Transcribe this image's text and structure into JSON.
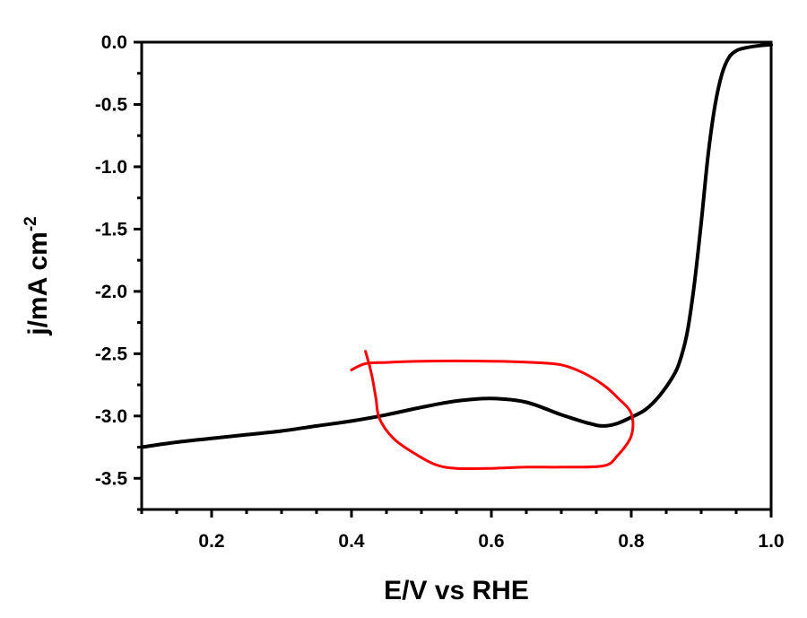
{
  "chart_data": {
    "type": "line",
    "xlabel": "E/V vs RHE",
    "ylabel": {
      "text": "j/mA cm",
      "superscript": "-2"
    },
    "xlim": [
      0.1,
      1.0
    ],
    "ylim": [
      -3.75,
      0.0
    ],
    "x_ticks": [
      {
        "value": 0.2,
        "label": "0.2"
      },
      {
        "value": 0.4,
        "label": "0.4"
      },
      {
        "value": 0.6,
        "label": "0.6"
      },
      {
        "value": 0.8,
        "label": "0.8"
      },
      {
        "value": 1.0,
        "label": "1.0"
      }
    ],
    "y_ticks": [
      {
        "value": 0.0,
        "label": "0.0"
      },
      {
        "value": -0.5,
        "label": "-0.5"
      },
      {
        "value": -1.0,
        "label": "-1.0"
      },
      {
        "value": -1.5,
        "label": "-1.5"
      },
      {
        "value": -2.0,
        "label": "-2.0"
      },
      {
        "value": -2.5,
        "label": "-2.5"
      },
      {
        "value": -3.0,
        "label": "-3.0"
      },
      {
        "value": -3.5,
        "label": "-3.5"
      }
    ],
    "x_minor_step": 0.05,
    "y_minor_step": 0.25,
    "grid": false,
    "legend": "none",
    "series": [
      {
        "color": "#000000",
        "x": [
          0.1,
          0.15,
          0.2,
          0.25,
          0.3,
          0.35,
          0.4,
          0.45,
          0.5,
          0.55,
          0.6,
          0.65,
          0.7,
          0.74,
          0.76,
          0.78,
          0.8,
          0.82,
          0.84,
          0.86,
          0.87,
          0.88,
          0.89,
          0.9,
          0.91,
          0.92,
          0.93,
          0.94,
          0.95,
          0.96,
          0.98,
          1.0
        ],
        "y": [
          -3.25,
          -3.21,
          -3.18,
          -3.15,
          -3.12,
          -3.08,
          -3.04,
          -2.99,
          -2.93,
          -2.88,
          -2.86,
          -2.89,
          -2.99,
          -3.06,
          -3.08,
          -3.06,
          -3.01,
          -2.95,
          -2.84,
          -2.68,
          -2.55,
          -2.33,
          -1.95,
          -1.45,
          -0.9,
          -0.5,
          -0.25,
          -0.12,
          -0.07,
          -0.05,
          -0.03,
          -0.02
        ]
      }
    ],
    "annotations": [
      {
        "type": "hand-drawn-loop",
        "color": "#ff0000",
        "x": [
          0.4,
          0.42,
          0.45,
          0.5,
          0.6,
          0.66,
          0.7,
          0.73,
          0.76,
          0.78,
          0.8,
          0.8,
          0.78,
          0.76,
          0.7,
          0.65,
          0.6,
          0.55,
          0.52,
          0.49,
          0.46,
          0.44,
          0.435,
          0.43,
          0.425,
          0.42
        ],
        "y": [
          -2.63,
          -2.58,
          -2.57,
          -2.56,
          -2.56,
          -2.57,
          -2.59,
          -2.65,
          -2.75,
          -2.85,
          -2.98,
          -3.16,
          -3.32,
          -3.4,
          -3.41,
          -3.41,
          -3.42,
          -3.42,
          -3.39,
          -3.3,
          -3.18,
          -3.02,
          -2.86,
          -2.7,
          -2.58,
          -2.48
        ]
      }
    ]
  }
}
